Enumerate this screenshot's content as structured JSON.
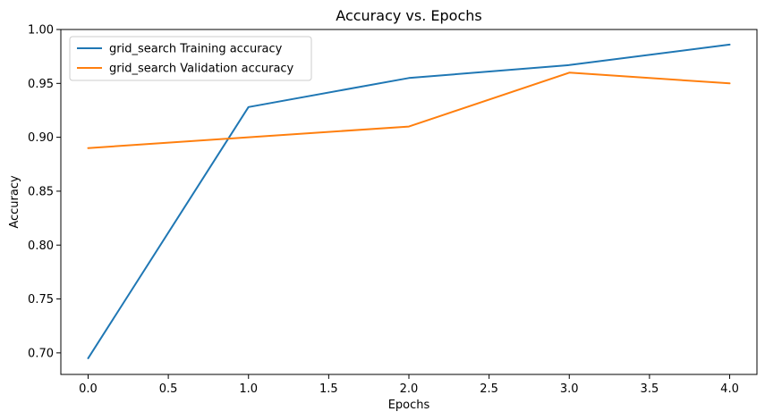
{
  "chart_data": {
    "type": "line",
    "title": "Accuracy vs. Epochs",
    "xlabel": "Epochs",
    "ylabel": "Accuracy",
    "xlim": [
      -0.17,
      4.17
    ],
    "ylim": [
      0.68,
      1.0
    ],
    "x_ticks": [
      0.0,
      0.5,
      1.0,
      1.5,
      2.0,
      2.5,
      3.0,
      3.5,
      4.0
    ],
    "x_tick_labels": [
      "0.0",
      "0.5",
      "1.0",
      "1.5",
      "2.0",
      "2.5",
      "3.0",
      "3.5",
      "4.0"
    ],
    "y_ticks": [
      0.7,
      0.75,
      0.8,
      0.85,
      0.9,
      0.95,
      1.0
    ],
    "y_tick_labels": [
      "0.70",
      "0.75",
      "0.80",
      "0.85",
      "0.90",
      "0.95",
      "1.00"
    ],
    "grid": false,
    "legend_position": "top-left",
    "x": [
      0,
      1,
      2,
      3,
      4
    ],
    "series": [
      {
        "name": "grid_search Training accuracy",
        "color": "#1f77b4",
        "values": [
          0.695,
          0.928,
          0.955,
          0.967,
          0.986
        ]
      },
      {
        "name": "grid_search Validation accuracy",
        "color": "#ff7f0e",
        "values": [
          0.89,
          0.9,
          0.91,
          0.96,
          0.95
        ]
      }
    ]
  }
}
